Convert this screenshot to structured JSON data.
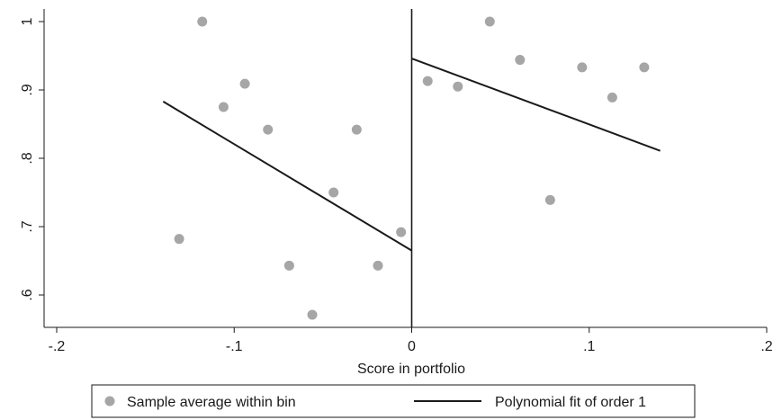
{
  "chart_data": {
    "type": "scatter",
    "xlabel": "Score in portfolio",
    "ylabel": "",
    "xlim": [
      -0.2,
      0.2
    ],
    "ylim": [
      0.55,
      1.02
    ],
    "x_ticks": [
      {
        "value": -0.2,
        "label": "-.2"
      },
      {
        "value": -0.1,
        "label": "-.1"
      },
      {
        "value": 0,
        "label": "0"
      },
      {
        "value": 0.1,
        "label": ".1"
      },
      {
        "value": 0.2,
        "label": ".2"
      }
    ],
    "y_ticks": [
      {
        "value": 0.6,
        "label": ".6"
      },
      {
        "value": 0.7,
        "label": ".7"
      },
      {
        "value": 0.8,
        "label": ".8"
      },
      {
        "value": 0.9,
        "label": ".9"
      },
      {
        "value": 1.0,
        "label": "1"
      }
    ],
    "cutoff_x": 0,
    "grid": false,
    "legend_position": "bottom",
    "series": [
      {
        "name": "Sample average within bin",
        "kind": "scatter",
        "color": "#a6a6a6",
        "points": [
          {
            "x": -0.131,
            "y": 0.682
          },
          {
            "x": -0.118,
            "y": 1.0
          },
          {
            "x": -0.106,
            "y": 0.875
          },
          {
            "x": -0.094,
            "y": 0.909
          },
          {
            "x": -0.081,
            "y": 0.842
          },
          {
            "x": -0.069,
            "y": 0.643
          },
          {
            "x": -0.056,
            "y": 0.571
          },
          {
            "x": -0.044,
            "y": 0.75
          },
          {
            "x": -0.031,
            "y": 0.842
          },
          {
            "x": -0.019,
            "y": 0.643
          },
          {
            "x": -0.006,
            "y": 0.692
          },
          {
            "x": 0.009,
            "y": 0.913
          },
          {
            "x": 0.026,
            "y": 0.905
          },
          {
            "x": 0.044,
            "y": 1.0
          },
          {
            "x": 0.061,
            "y": 0.944
          },
          {
            "x": 0.078,
            "y": 0.739
          },
          {
            "x": 0.096,
            "y": 0.933
          },
          {
            "x": 0.113,
            "y": 0.889
          },
          {
            "x": 0.131,
            "y": 0.933
          }
        ]
      },
      {
        "name": "Polynomial fit of order 1",
        "kind": "line",
        "color": "#1a1a1a",
        "segments": [
          [
            {
              "x": -0.14,
              "y": 0.883
            },
            {
              "x": 0.0,
              "y": 0.665
            }
          ],
          [
            {
              "x": 0.0,
              "y": 0.946
            },
            {
              "x": 0.14,
              "y": 0.811
            }
          ]
        ]
      }
    ]
  },
  "legend": {
    "items": [
      {
        "label": "Sample average within bin",
        "symbol": "dot",
        "color": "#a6a6a6"
      },
      {
        "label": "Polynomial fit of order 1",
        "symbol": "line",
        "color": "#1a1a1a"
      }
    ]
  }
}
